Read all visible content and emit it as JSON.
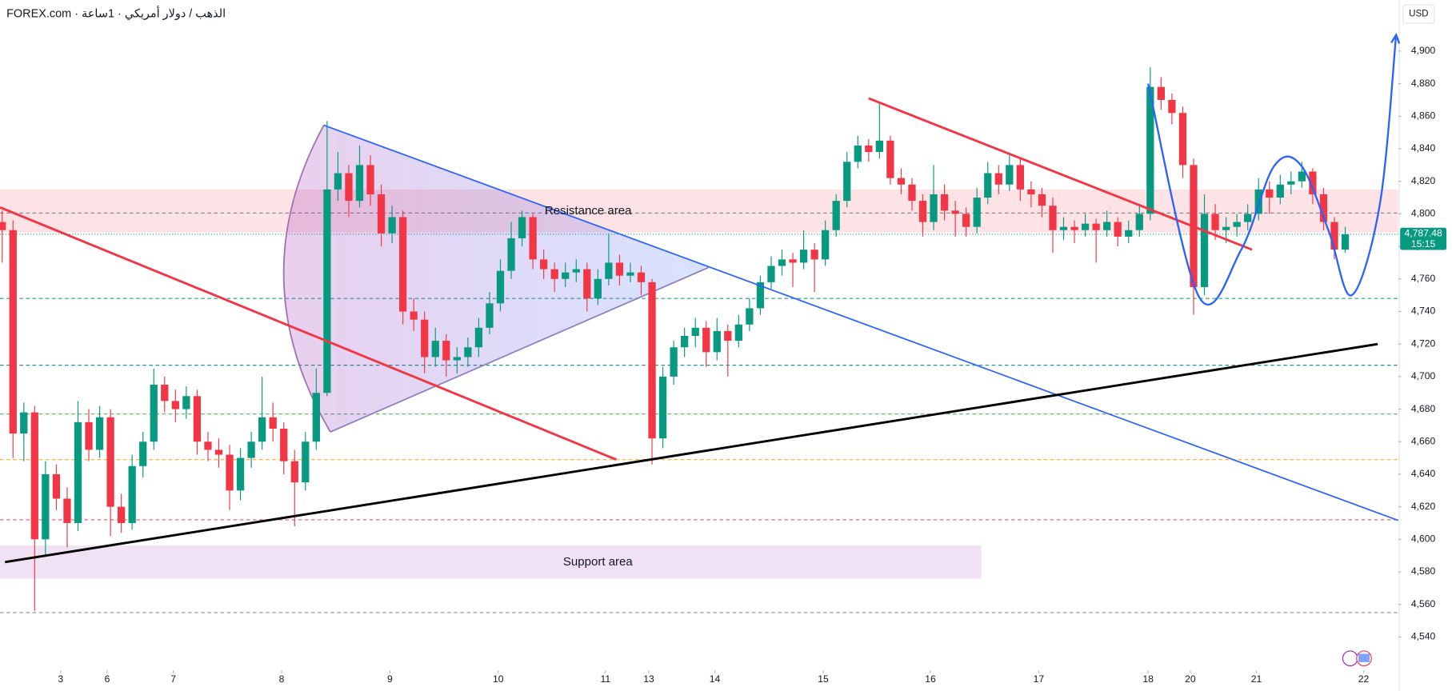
{
  "chart_data": {
    "type": "candlestick",
    "title": "FOREX.com · الذهب / دولار أمريكي · 1ساعة",
    "currency": "USD",
    "up_color": "#089981",
    "down_color": "#f23645",
    "xlim": [
      -0.2,
      128.9
    ],
    "ylim": [
      4521.7,
      4931.3
    ],
    "yticks": [
      {
        "value": 4540,
        "label": "4,540"
      },
      {
        "value": 4560,
        "label": "4,560"
      },
      {
        "value": 4580,
        "label": "4,580"
      },
      {
        "value": 4600,
        "label": "4,600"
      },
      {
        "value": 4620,
        "label": "4,620"
      },
      {
        "value": 4640,
        "label": "4,640"
      },
      {
        "value": 4660,
        "label": "4,660"
      },
      {
        "value": 4680,
        "label": "4,680"
      },
      {
        "value": 4700,
        "label": "4,700"
      },
      {
        "value": 4720,
        "label": "4,720"
      },
      {
        "value": 4740,
        "label": "4,740"
      },
      {
        "value": 4760,
        "label": "4,760"
      },
      {
        "value": 4780,
        "label": "4,780"
      },
      {
        "value": 4800,
        "label": "4,800"
      },
      {
        "value": 4820,
        "label": "4,820"
      },
      {
        "value": 4840,
        "label": "4,840"
      },
      {
        "value": 4860,
        "label": "4,860"
      },
      {
        "value": 4880,
        "label": "4,880"
      },
      {
        "value": 4900,
        "label": "4,900"
      }
    ],
    "xticks": [
      {
        "value": 5.4,
        "label": "3"
      },
      {
        "value": 9.7,
        "label": "6"
      },
      {
        "value": 15.8,
        "label": "7"
      },
      {
        "value": 25.8,
        "label": "8"
      },
      {
        "value": 35.8,
        "label": "9"
      },
      {
        "value": 45.8,
        "label": "10"
      },
      {
        "value": 55.7,
        "label": "11"
      },
      {
        "value": 59.7,
        "label": "13"
      },
      {
        "value": 65.8,
        "label": "14"
      },
      {
        "value": 75.8,
        "label": "15"
      },
      {
        "value": 85.7,
        "label": "16"
      },
      {
        "value": 95.7,
        "label": "17"
      },
      {
        "value": 105.8,
        "label": "18"
      },
      {
        "value": 109.7,
        "label": "20"
      },
      {
        "value": 115.8,
        "label": "21"
      },
      {
        "value": 125.7,
        "label": "22"
      }
    ],
    "candles": [
      [
        4795,
        4802,
        4770,
        4790
      ],
      [
        4790,
        4796,
        4650,
        4665
      ],
      [
        4665,
        4684,
        4648,
        4678
      ],
      [
        4678,
        4682,
        4556,
        4600
      ],
      [
        4600,
        4648,
        4590,
        4640
      ],
      [
        4640,
        4646,
        4618,
        4625
      ],
      [
        4625,
        4632,
        4595,
        4610
      ],
      [
        4610,
        4685,
        4605,
        4672
      ],
      [
        4672,
        4680,
        4648,
        4655
      ],
      [
        4655,
        4682,
        4650,
        4675
      ],
      [
        4675,
        4680,
        4602,
        4620
      ],
      [
        4620,
        4628,
        4604,
        4610
      ],
      [
        4610,
        4652,
        4606,
        4645
      ],
      [
        4645,
        4666,
        4638,
        4660
      ],
      [
        4660,
        4705,
        4655,
        4695
      ],
      [
        4695,
        4700,
        4678,
        4685
      ],
      [
        4685,
        4692,
        4672,
        4680
      ],
      [
        4680,
        4694,
        4674,
        4688
      ],
      [
        4688,
        4692,
        4652,
        4660
      ],
      [
        4660,
        4666,
        4648,
        4655
      ],
      [
        4655,
        4662,
        4644,
        4652
      ],
      [
        4652,
        4658,
        4618,
        4630
      ],
      [
        4630,
        4656,
        4624,
        4650
      ],
      [
        4650,
        4666,
        4644,
        4660
      ],
      [
        4660,
        4700,
        4655,
        4675
      ],
      [
        4675,
        4684,
        4660,
        4668
      ],
      [
        4668,
        4672,
        4640,
        4648
      ],
      [
        4648,
        4655,
        4608,
        4635
      ],
      [
        4635,
        4666,
        4630,
        4660
      ],
      [
        4660,
        4705,
        4655,
        4690
      ],
      [
        4690,
        4857,
        4688,
        4815
      ],
      [
        4815,
        4838,
        4808,
        4825
      ],
      [
        4825,
        4830,
        4798,
        4808
      ],
      [
        4808,
        4842,
        4804,
        4830
      ],
      [
        4830,
        4836,
        4805,
        4812
      ],
      [
        4812,
        4818,
        4780,
        4788
      ],
      [
        4788,
        4805,
        4782,
        4798
      ],
      [
        4798,
        4802,
        4732,
        4740
      ],
      [
        4740,
        4748,
        4728,
        4735
      ],
      [
        4735,
        4740,
        4702,
        4712
      ],
      [
        4712,
        4730,
        4706,
        4722
      ],
      [
        4722,
        4726,
        4700,
        4710
      ],
      [
        4710,
        4718,
        4702,
        4712
      ],
      [
        4712,
        4724,
        4706,
        4718
      ],
      [
        4718,
        4736,
        4712,
        4730
      ],
      [
        4730,
        4752,
        4726,
        4745
      ],
      [
        4745,
        4772,
        4740,
        4765
      ],
      [
        4765,
        4795,
        4760,
        4785
      ],
      [
        4785,
        4802,
        4780,
        4798
      ],
      [
        4798,
        4800,
        4766,
        4772
      ],
      [
        4772,
        4778,
        4760,
        4766
      ],
      [
        4766,
        4770,
        4752,
        4760
      ],
      [
        4760,
        4770,
        4755,
        4764
      ],
      [
        4764,
        4772,
        4758,
        4766
      ],
      [
        4766,
        4770,
        4740,
        4748
      ],
      [
        4748,
        4766,
        4744,
        4760
      ],
      [
        4760,
        4788,
        4756,
        4770
      ],
      [
        4770,
        4775,
        4756,
        4762
      ],
      [
        4762,
        4770,
        4758,
        4764
      ],
      [
        4764,
        4768,
        4750,
        4758
      ],
      [
        4758,
        4760,
        4646,
        4662
      ],
      [
        4662,
        4706,
        4656,
        4700
      ],
      [
        4700,
        4722,
        4695,
        4718
      ],
      [
        4718,
        4730,
        4712,
        4725
      ],
      [
        4725,
        4736,
        4718,
        4730
      ],
      [
        4730,
        4734,
        4706,
        4715
      ],
      [
        4715,
        4736,
        4710,
        4728
      ],
      [
        4728,
        4732,
        4700,
        4722
      ],
      [
        4722,
        4738,
        4718,
        4732
      ],
      [
        4732,
        4748,
        4728,
        4742
      ],
      [
        4742,
        4762,
        4738,
        4758
      ],
      [
        4758,
        4774,
        4754,
        4768
      ],
      [
        4768,
        4778,
        4762,
        4772
      ],
      [
        4772,
        4776,
        4755,
        4770
      ],
      [
        4770,
        4790,
        4766,
        4778
      ],
      [
        4778,
        4782,
        4752,
        4772
      ],
      [
        4772,
        4796,
        4768,
        4790
      ],
      [
        4790,
        4812,
        4786,
        4808
      ],
      [
        4808,
        4838,
        4804,
        4832
      ],
      [
        4832,
        4848,
        4828,
        4842
      ],
      [
        4842,
        4846,
        4832,
        4838
      ],
      [
        4838,
        4868,
        4834,
        4845
      ],
      [
        4845,
        4848,
        4818,
        4822
      ],
      [
        4822,
        4828,
        4812,
        4818
      ],
      [
        4818,
        4822,
        4802,
        4808
      ],
      [
        4808,
        4812,
        4786,
        4795
      ],
      [
        4795,
        4830,
        4790,
        4812
      ],
      [
        4812,
        4818,
        4796,
        4802
      ],
      [
        4802,
        4808,
        4786,
        4800
      ],
      [
        4800,
        4804,
        4786,
        4792
      ],
      [
        4792,
        4816,
        4788,
        4810
      ],
      [
        4810,
        4832,
        4806,
        4825
      ],
      [
        4825,
        4830,
        4812,
        4818
      ],
      [
        4818,
        4836,
        4814,
        4830
      ],
      [
        4830,
        4834,
        4808,
        4815
      ],
      [
        4815,
        4820,
        4804,
        4812
      ],
      [
        4812,
        4816,
        4798,
        4805
      ],
      [
        4805,
        4810,
        4776,
        4790
      ],
      [
        4790,
        4798,
        4784,
        4792
      ],
      [
        4792,
        4796,
        4782,
        4790
      ],
      [
        4790,
        4800,
        4786,
        4794
      ],
      [
        4794,
        4797,
        4770,
        4790
      ],
      [
        4790,
        4802,
        4786,
        4795
      ],
      [
        4795,
        4798,
        4780,
        4786
      ],
      [
        4786,
        4796,
        4782,
        4790
      ],
      [
        4790,
        4806,
        4786,
        4800
      ],
      [
        4800,
        4890,
        4796,
        4878
      ],
      [
        4878,
        4884,
        4864,
        4870
      ],
      [
        4870,
        4874,
        4855,
        4862
      ],
      [
        4862,
        4866,
        4822,
        4830
      ],
      [
        4830,
        4834,
        4738,
        4755
      ],
      [
        4755,
        4812,
        4750,
        4800
      ],
      [
        4800,
        4806,
        4784,
        4790
      ],
      [
        4790,
        4798,
        4782,
        4792
      ],
      [
        4792,
        4800,
        4786,
        4795
      ],
      [
        4795,
        4806,
        4790,
        4800
      ],
      [
        4800,
        4822,
        4796,
        4815
      ],
      [
        4815,
        4820,
        4800,
        4810
      ],
      [
        4810,
        4824,
        4806,
        4818
      ],
      [
        4818,
        4826,
        4812,
        4820
      ],
      [
        4820,
        4832,
        4816,
        4826
      ],
      [
        4826,
        4828,
        4806,
        4812
      ],
      [
        4812,
        4816,
        4790,
        4795
      ],
      [
        4795,
        4798,
        4772,
        4778
      ],
      [
        4778,
        4792,
        4776,
        4787.48
      ]
    ],
    "last_price": {
      "value": 4787.48,
      "label": "4,787.48"
    },
    "countdown": "15:15",
    "levels": [
      {
        "value": 4800.5,
        "color": "#787b86"
      },
      {
        "value": 4787.48,
        "color": "#089981"
      },
      {
        "value": 4748,
        "color": "#00897b"
      },
      {
        "value": 4707,
        "color": "#00897b"
      },
      {
        "value": 4677,
        "color": "#43a047"
      },
      {
        "value": 4649,
        "color": "#ff9800"
      },
      {
        "value": 4612,
        "color": "#f23645"
      },
      {
        "value": 4555,
        "color": "#787b86"
      }
    ],
    "zones": [
      {
        "name": "Resistance area",
        "range": [
          4788.5,
          4815
        ],
        "x": [
          -0.2,
          128.9
        ],
        "color": "#f23645",
        "label_at": 54.1
      },
      {
        "name": "Support area",
        "range": [
          4575.8,
          4596.2
        ],
        "x": [
          -0.2,
          90.4
        ],
        "color": "#9c27b0",
        "label_color": "#2962ff",
        "label_at": 55
      }
    ],
    "pattern": {
      "points": [
        [
          29.7,
          4854.5
        ],
        [
          65.2,
          4767
        ],
        [
          30.3,
          4666
        ]
      ],
      "arc_control": [
        22.0,
        4760
      ]
    },
    "trendlines": [
      {
        "color": "#f23645",
        "points": [
          [
            -0.2,
            4804
          ],
          [
            56.7,
            4649
          ]
        ]
      },
      {
        "color": "#f23645",
        "points": [
          [
            80.0,
            4871
          ],
          [
            115.4,
            4778
          ]
        ]
      },
      {
        "color": "#2962ff",
        "points": [
          [
            29.7,
            4854.5
          ],
          [
            128.9,
            4611.6
          ]
        ]
      },
      {
        "color": "#000000",
        "points": [
          [
            0.26,
            4586
          ],
          [
            127.0,
            4720
          ]
        ]
      }
    ],
    "projection": {
      "color": "#2962ff",
      "points": [
        [
          105.8,
          4880
        ],
        [
          110.5,
          4749
        ],
        [
          114.4,
          4778
        ],
        [
          117.4,
          4829
        ],
        [
          119.9,
          4830
        ],
        [
          122.5,
          4789
        ],
        [
          124.6,
          4750
        ],
        [
          127.2,
          4806
        ],
        [
          128.7,
          4910
        ]
      ]
    }
  }
}
